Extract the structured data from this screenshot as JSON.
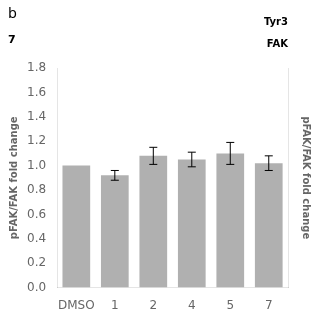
{
  "chart_data": {
    "type": "bar",
    "categories": [
      "DMSO",
      "1",
      "2",
      "4",
      "5",
      "7"
    ],
    "values": [
      1.0,
      0.92,
      1.08,
      1.05,
      1.1,
      1.02
    ],
    "errors": [
      0.0,
      0.04,
      0.07,
      0.06,
      0.09,
      0.06
    ],
    "color": "#b0b0b0",
    "ylabel": "pFAK/FAK fold change",
    "y2label": "pFAK/FAK fold change",
    "ylim": [
      0.0,
      1.8
    ],
    "yticks": [
      {
        "value": 0.0,
        "label": "0.0"
      },
      0.2,
      0.4,
      0.6,
      0.8,
      {
        "value": 1.0,
        "label": "1.0"
      },
      1.2,
      1.4,
      1.6,
      1.8
    ],
    "y2lim": [
      0.0,
      1.8
    ],
    "y2ticks": [],
    "annotations": [
      "b",
      "7",
      "Tyr3",
      "FAK"
    ],
    "grid": false
  }
}
